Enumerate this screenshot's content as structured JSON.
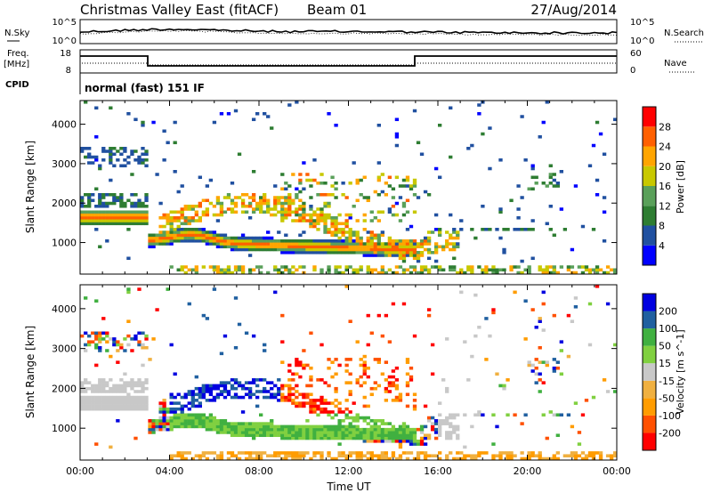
{
  "header": {
    "title": "Christmas Valley East (fitACF)",
    "beam": "Beam 01",
    "date": "27/Aug/2014"
  },
  "noise_panel": {
    "left_label": "N.Sky",
    "right_label": "N.Search",
    "ticks_left": [
      "10^5",
      "10^0"
    ],
    "ticks_right": [
      "10^5",
      "10^0"
    ]
  },
  "freq_panel": {
    "left_label_1": "Freq.",
    "left_label_2": "[MHz]",
    "right_label": "Nave",
    "ticks_left": [
      "18",
      "8"
    ],
    "ticks_right": [
      "60",
      "0"
    ]
  },
  "cpid": {
    "label": "CPID",
    "value": "normal (fast) 151 IF"
  },
  "colors": {
    "power": [
      "#0000ff",
      "#2050a0",
      "#2e7d32",
      "#5aa05a",
      "#c8c800",
      "#ffa500",
      "#ff6000",
      "#ff0000"
    ],
    "velocity": [
      "#ff0000",
      "#ff5000",
      "#ff9c00",
      "#f0b040",
      "#c8c8c8",
      "#80d040",
      "#40b040",
      "#2060a0",
      "#0000e0"
    ]
  },
  "chart_data": [
    {
      "type": "heatmap",
      "name": "power",
      "ylabel": "Slant Range [km]",
      "yticks": [
        1000,
        2000,
        3000,
        4000
      ],
      "ylim": [
        200,
        4600
      ],
      "colorbar": {
        "label": "Power [dB]",
        "ticks": [
          "4",
          "8",
          "12",
          "16",
          "20",
          "24",
          "28"
        ],
        "range": [
          0,
          32
        ]
      }
    },
    {
      "type": "heatmap",
      "name": "velocity",
      "ylabel": "Slant Range [km]",
      "yticks": [
        1000,
        2000,
        3000,
        4000
      ],
      "ylim": [
        200,
        4600
      ],
      "xlabel": "Time UT",
      "xticks": [
        "00:00",
        "04:00",
        "08:00",
        "12:00",
        "16:00",
        "20:00",
        "00:00"
      ],
      "colorbar": {
        "label": "Velocity [m s^-1]",
        "ticks": [
          "200",
          "100",
          "50",
          "15",
          "-15",
          "-50",
          "-100",
          "-200"
        ]
      }
    }
  ]
}
